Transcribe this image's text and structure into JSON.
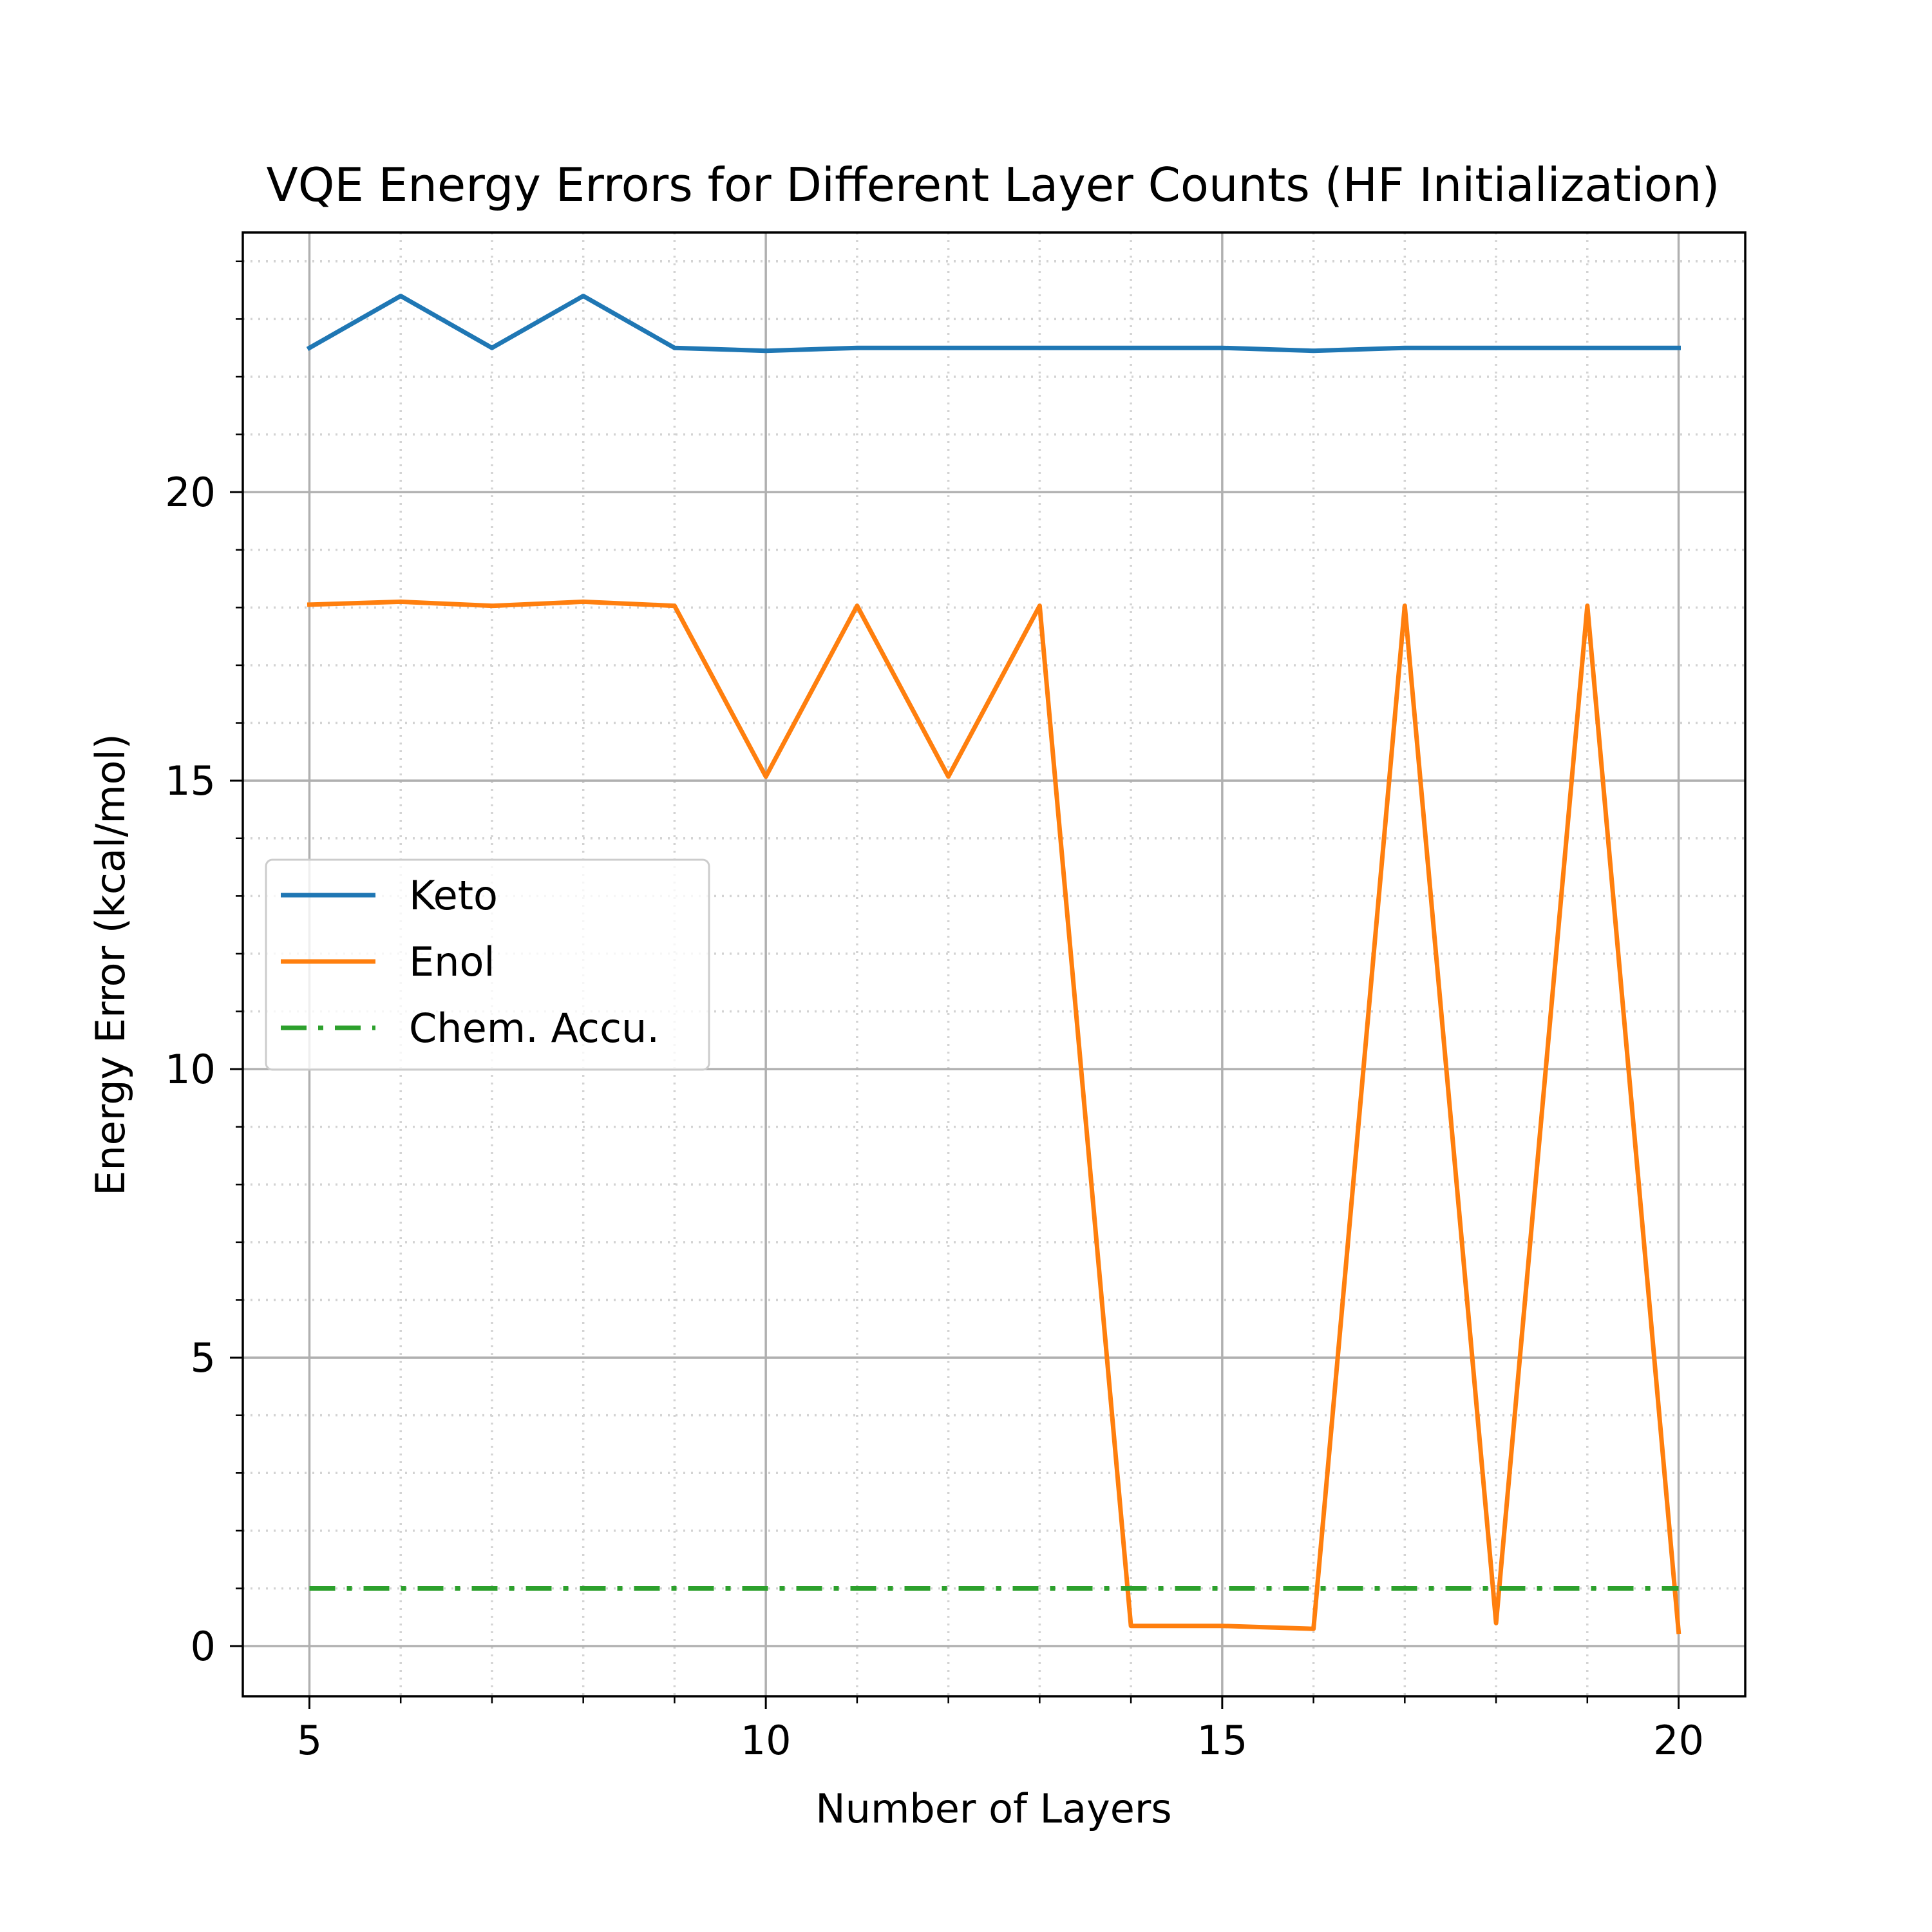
{
  "chart_data": {
    "type": "line",
    "title": "VQE Energy Errors for Different Layer Counts (HF Initialization)",
    "xlabel": "Number of Layers",
    "ylabel": "Energy Error (kcal/mol)",
    "xlim": [
      4.27,
      20.73
    ],
    "ylim": [
      -0.87,
      24.5
    ],
    "xticks": [
      5,
      10,
      15,
      20
    ],
    "yticks": [
      0,
      5,
      10,
      15,
      20
    ],
    "xtick_labels": [
      "5",
      "10",
      "15",
      "20"
    ],
    "ytick_labels": [
      "0",
      "5",
      "10",
      "15",
      "20"
    ],
    "x_minor_ticks": [
      6,
      7,
      8,
      9,
      11,
      12,
      13,
      14,
      16,
      17,
      18,
      19
    ],
    "y_minor_ticks": [
      1,
      2,
      3,
      4,
      6,
      7,
      8,
      9,
      11,
      12,
      13,
      14,
      16,
      17,
      18,
      19,
      21,
      22,
      23,
      24
    ],
    "grid": "major solid, minor dotted",
    "legend_position": "center-left",
    "x": [
      5,
      6,
      7,
      8,
      9,
      10,
      11,
      12,
      13,
      14,
      15,
      16,
      17,
      18,
      19,
      20
    ],
    "series": [
      {
        "name": "Keto",
        "color": "#1f77b4",
        "style": "solid",
        "values": [
          22.5,
          23.4,
          22.5,
          23.4,
          22.5,
          22.45,
          22.5,
          22.5,
          22.5,
          22.5,
          22.5,
          22.45,
          22.5,
          22.5,
          22.5,
          22.5
        ]
      },
      {
        "name": "Enol",
        "color": "#ff7f0e",
        "style": "solid",
        "values": [
          18.05,
          18.1,
          18.03,
          18.1,
          18.03,
          15.07,
          18.03,
          15.07,
          18.03,
          0.35,
          0.35,
          0.3,
          18.03,
          0.4,
          18.03,
          0.25
        ]
      },
      {
        "name": "Chem. Accu.",
        "color": "#2ca02c",
        "style": "dashdot",
        "values": [
          1,
          1,
          1,
          1,
          1,
          1,
          1,
          1,
          1,
          1,
          1,
          1,
          1,
          1,
          1,
          1
        ]
      }
    ]
  }
}
